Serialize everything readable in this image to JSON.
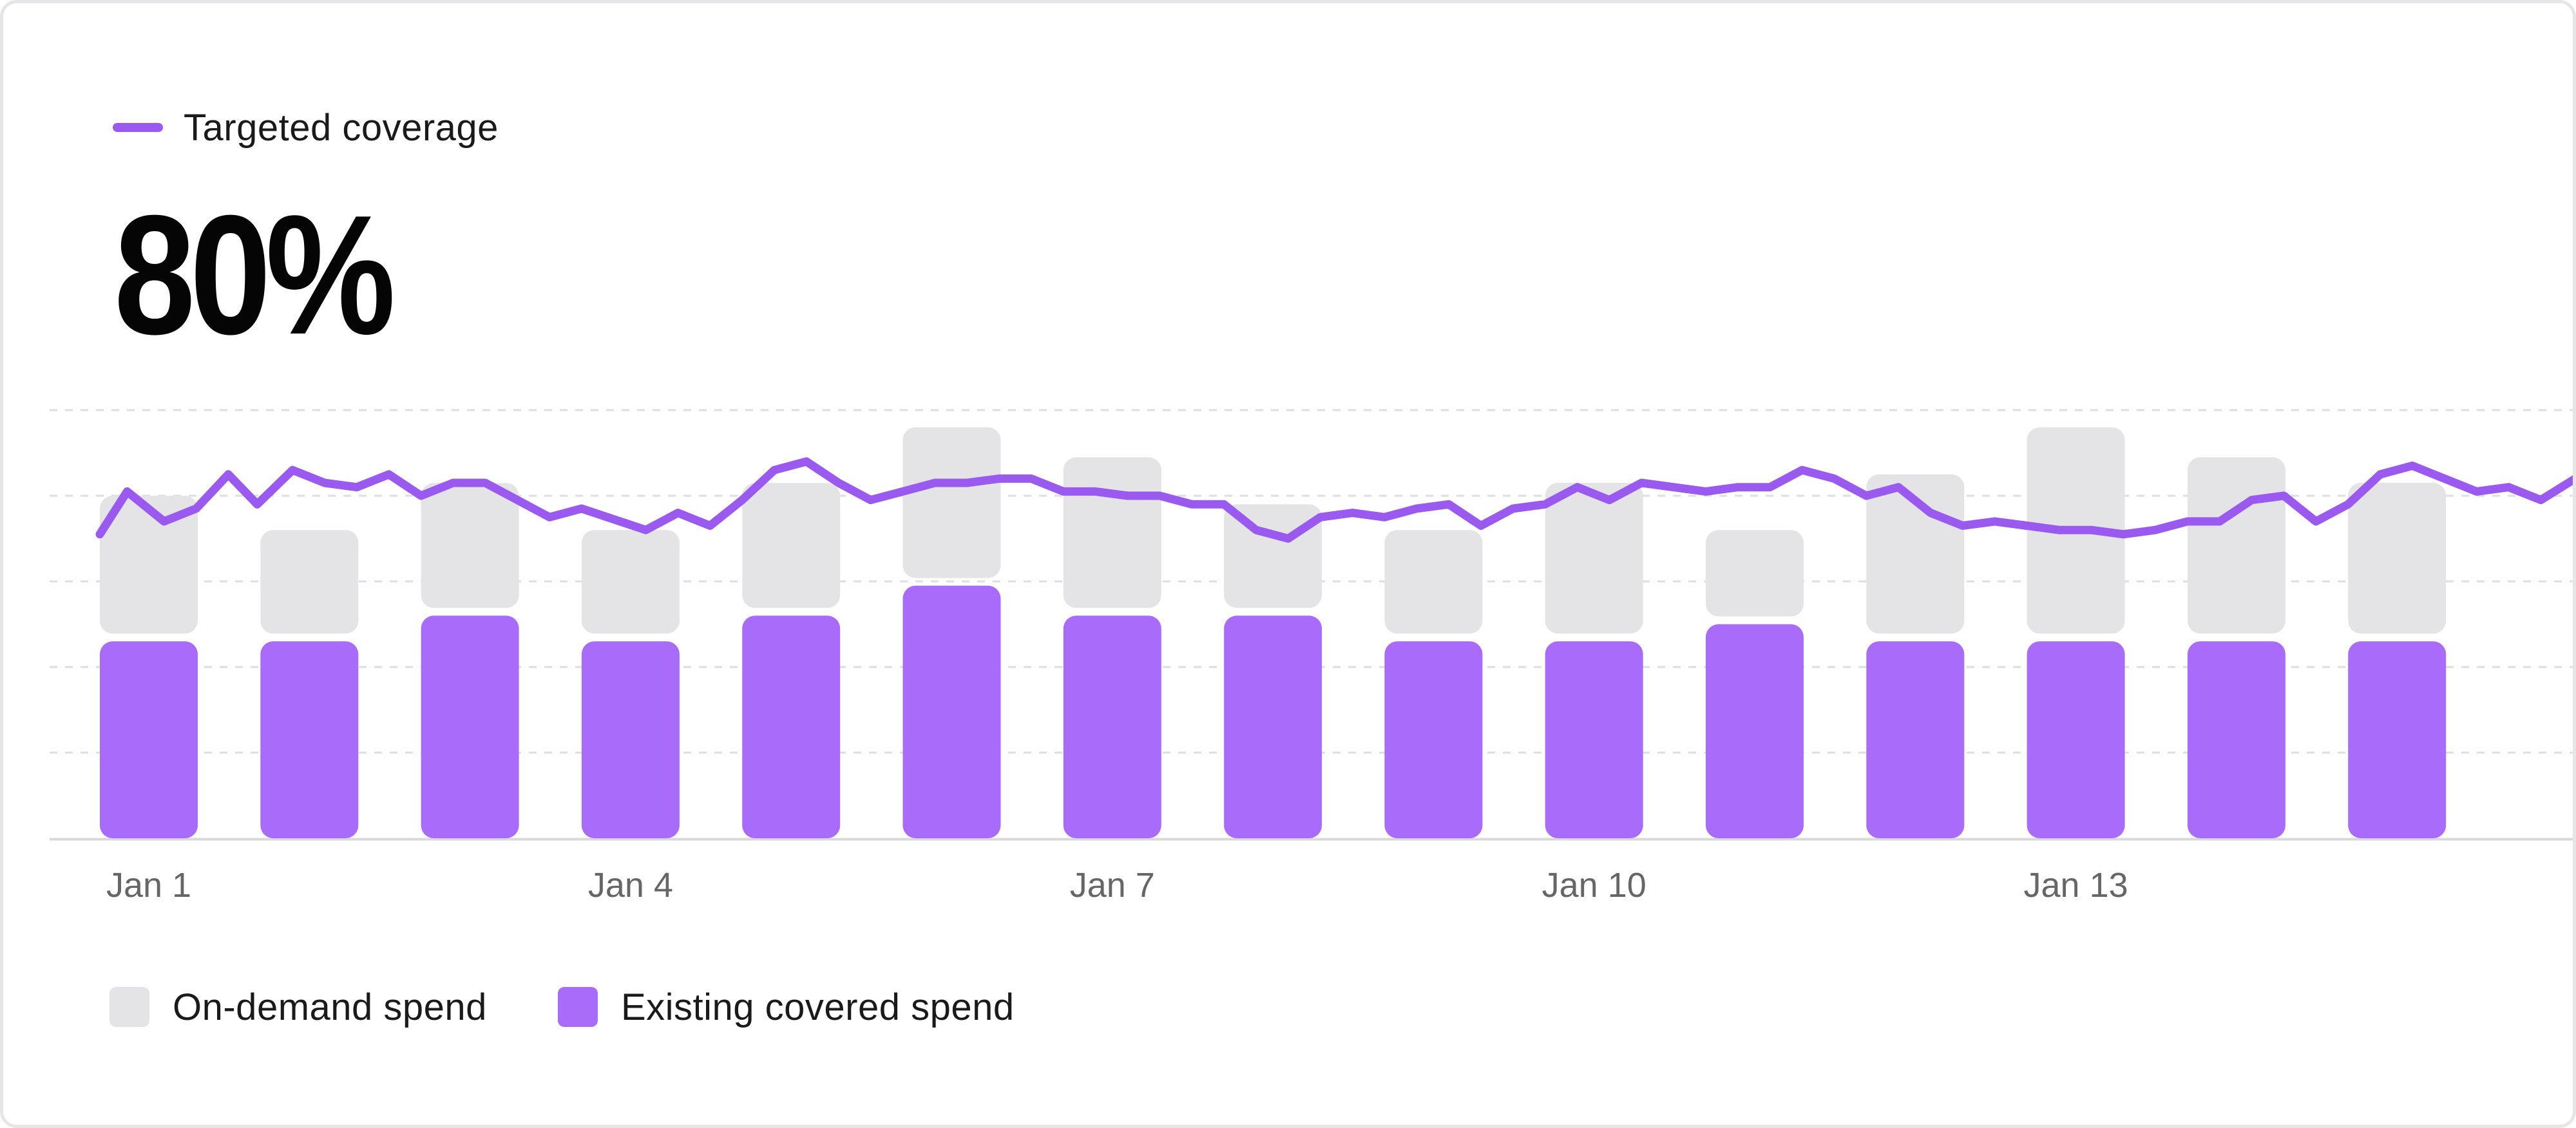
{
  "headline": {
    "label": "Targeted coverage",
    "value": "80%"
  },
  "colors": {
    "covered": "#a86bfa",
    "on_demand": "#e4e4e6",
    "line": "#9a5af0",
    "grid": "#dedede",
    "axis": "#d9d9d9",
    "tick_text": "#666666"
  },
  "legend": {
    "items": [
      {
        "key": "on_demand",
        "label": "On-demand spend",
        "color": "#e4e4e6"
      },
      {
        "key": "covered",
        "label": "Existing covered spend",
        "color": "#a86bfa"
      }
    ]
  },
  "chart_data": {
    "type": "bar",
    "stacked": true,
    "grid": true,
    "legend_placement": "bottom-left",
    "ylim": [
      0,
      100
    ],
    "categories": [
      "Jan 1",
      "Jan 2",
      "Jan 3",
      "Jan 4",
      "Jan 5",
      "Jan 6",
      "Jan 7",
      "Jan 8",
      "Jan 9",
      "Jan 10",
      "Jan 11",
      "Jan 12",
      "Jan 13",
      "Jan 14",
      "Jan 15"
    ],
    "tick_labels": [
      "Jan 1",
      "Jan 4",
      "Jan 7",
      "Jan 10",
      "Jan 13"
    ],
    "series": [
      {
        "key": "covered",
        "name": "Existing covered spend",
        "values": [
          46,
          46,
          52,
          46,
          52,
          59,
          52,
          52,
          46,
          46,
          50,
          46,
          46,
          46,
          46
        ]
      },
      {
        "key": "on_demand",
        "name": "On-demand spend",
        "values": [
          34,
          26,
          31,
          26,
          31,
          37,
          37,
          26,
          26,
          37,
          22,
          39,
          50,
          43,
          37
        ]
      }
    ],
    "line": {
      "name": "Targeted coverage",
      "x": [
        0.0,
        0.17,
        0.4,
        0.6,
        0.8,
        0.98,
        1.2,
        1.4,
        1.6,
        1.8,
        2.0,
        2.2,
        2.4,
        2.8,
        3.0,
        3.4,
        3.6,
        3.8,
        4.0,
        4.2,
        4.4,
        4.6,
        4.8,
        5.0,
        5.2,
        5.4,
        5.6,
        5.8,
        6.0,
        6.2,
        6.4,
        6.6,
        6.8,
        7.0,
        7.2,
        7.4,
        7.6,
        7.8,
        8.0,
        8.2,
        8.4,
        8.6,
        8.8,
        9.0,
        9.2,
        9.4,
        9.6,
        9.8,
        10.0,
        10.2,
        10.4,
        10.6,
        10.8,
        11.0,
        11.2,
        11.4,
        11.6,
        11.8,
        12.0,
        12.2,
        12.4,
        12.6,
        12.8,
        13.0,
        13.2,
        13.4,
        13.6,
        13.8,
        14.0,
        14.2,
        14.4,
        14.6,
        14.8,
        15.0,
        15.2,
        15.5
      ],
      "values": [
        71,
        81,
        74,
        77,
        85,
        78,
        86,
        83,
        82,
        85,
        80,
        83,
        83,
        75,
        77,
        72,
        76,
        73,
        79,
        86,
        88,
        83,
        79,
        81,
        83,
        83,
        84,
        84,
        81,
        81,
        80,
        80,
        78,
        78,
        72,
        70,
        75,
        76,
        75,
        77,
        78,
        73,
        77,
        78,
        82,
        79,
        83,
        82,
        81,
        82,
        82,
        86,
        84,
        80,
        82,
        76,
        73,
        74,
        73,
        72,
        72,
        71,
        72,
        74,
        74,
        79,
        80,
        74,
        78,
        85,
        87,
        84,
        81,
        82,
        79,
        86
      ]
    }
  }
}
